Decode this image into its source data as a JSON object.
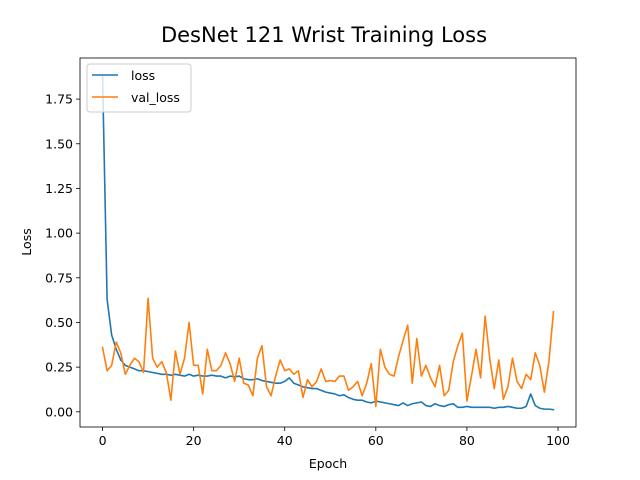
{
  "chart_data": {
    "type": "line",
    "title": "DesNet 121 Wrist Training Loss",
    "xlabel": "Epoch",
    "ylabel": "Loss",
    "xlim": [
      -4.95,
      103.95
    ],
    "ylim": [
      -0.085,
      1.98
    ],
    "xticks": [
      0,
      20,
      40,
      60,
      80,
      100
    ],
    "yticks": [
      0.0,
      0.25,
      0.5,
      0.75,
      1.0,
      1.25,
      1.5,
      1.75
    ],
    "ytick_labels": [
      "0.00",
      "0.25",
      "0.50",
      "0.75",
      "1.00",
      "1.25",
      "1.50",
      "1.75"
    ],
    "legend_position": "top-left",
    "grid": false,
    "series": [
      {
        "name": "loss",
        "color": "#1f77b4",
        "values": [
          1.88,
          0.63,
          0.43,
          0.35,
          0.29,
          0.26,
          0.25,
          0.24,
          0.23,
          0.23,
          0.225,
          0.22,
          0.215,
          0.21,
          0.21,
          0.205,
          0.21,
          0.205,
          0.2,
          0.21,
          0.2,
          0.205,
          0.2,
          0.2,
          0.205,
          0.2,
          0.2,
          0.19,
          0.2,
          0.195,
          0.2,
          0.185,
          0.18,
          0.18,
          0.185,
          0.175,
          0.17,
          0.165,
          0.16,
          0.16,
          0.17,
          0.19,
          0.16,
          0.15,
          0.14,
          0.135,
          0.13,
          0.13,
          0.12,
          0.11,
          0.105,
          0.1,
          0.09,
          0.095,
          0.08,
          0.07,
          0.065,
          0.065,
          0.055,
          0.05,
          0.06,
          0.055,
          0.05,
          0.045,
          0.04,
          0.035,
          0.05,
          0.035,
          0.045,
          0.05,
          0.055,
          0.035,
          0.03,
          0.045,
          0.035,
          0.03,
          0.04,
          0.045,
          0.025,
          0.025,
          0.03,
          0.025,
          0.025,
          0.025,
          0.025,
          0.025,
          0.02,
          0.025,
          0.025,
          0.03,
          0.025,
          0.02,
          0.02,
          0.03,
          0.1,
          0.035,
          0.02,
          0.015,
          0.015,
          0.012
        ]
      },
      {
        "name": "val_loss",
        "color": "#ff7f0e",
        "values": [
          0.36,
          0.23,
          0.26,
          0.39,
          0.33,
          0.21,
          0.26,
          0.3,
          0.28,
          0.22,
          0.635,
          0.3,
          0.25,
          0.28,
          0.22,
          0.065,
          0.34,
          0.21,
          0.3,
          0.5,
          0.26,
          0.26,
          0.1,
          0.35,
          0.23,
          0.23,
          0.26,
          0.33,
          0.27,
          0.17,
          0.3,
          0.16,
          0.15,
          0.09,
          0.3,
          0.37,
          0.14,
          0.09,
          0.2,
          0.29,
          0.23,
          0.24,
          0.21,
          0.23,
          0.08,
          0.18,
          0.14,
          0.17,
          0.24,
          0.17,
          0.175,
          0.17,
          0.2,
          0.2,
          0.12,
          0.14,
          0.17,
          0.09,
          0.16,
          0.27,
          0.03,
          0.35,
          0.25,
          0.21,
          0.2,
          0.31,
          0.4,
          0.485,
          0.16,
          0.41,
          0.2,
          0.26,
          0.19,
          0.14,
          0.26,
          0.09,
          0.12,
          0.28,
          0.37,
          0.44,
          0.06,
          0.2,
          0.35,
          0.19,
          0.535,
          0.3,
          0.13,
          0.29,
          0.07,
          0.14,
          0.3,
          0.17,
          0.13,
          0.21,
          0.18,
          0.33,
          0.26,
          0.11,
          0.28,
          0.56
        ]
      }
    ]
  }
}
